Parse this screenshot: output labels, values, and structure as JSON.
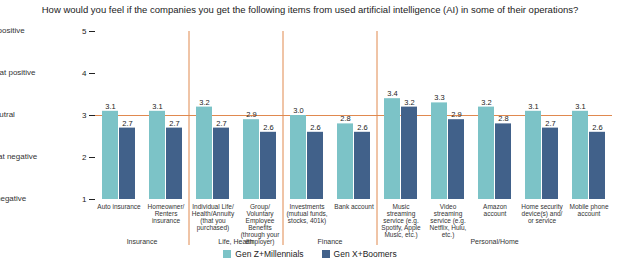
{
  "chart_data": {
    "type": "bar",
    "title": "How would you feel if the companies you get the following items from used artificial intelligence (AI) in some of their operations?",
    "categories": [
      "Auto insurance",
      "Homeowner/Renters insurance",
      "Individual Life/Health/Annuity (that you purchased)",
      "Group/Voluntary Employee Benefits (through your employer)",
      "Investments (mutual funds, stocks, 401k)",
      "Bank account",
      "Music streaming service (e.g. Spotify, Apple Music, etc.)",
      "Video streaming service (e.g. Netflix, Hulu, etc.)",
      "Amazon account",
      "Home security device(s) and/or service",
      "Mobile phone account"
    ],
    "groups": [
      {
        "name": "Insurance",
        "categories": [
          "Auto insurance",
          "Homeowner/Renters insurance"
        ]
      },
      {
        "name": "Life, Health",
        "categories": [
          "Individual Life/Health/Annuity (that you purchased)",
          "Group/Voluntary Employee Benefits (through your employer)"
        ]
      },
      {
        "name": "Finance",
        "categories": [
          "Investments (mutual funds, stocks, 401k)",
          "Bank account"
        ]
      },
      {
        "name": "Personal/Home",
        "categories": [
          "Music streaming service (e.g. Spotify, Apple Music, etc.)",
          "Video streaming service (e.g. Netflix, Hulu, etc.)",
          "Amazon account",
          "Home security device(s) and/or service",
          "Mobile phone account"
        ]
      }
    ],
    "series": [
      {
        "name": "Gen Z+Millennials",
        "color": "#7cc3c7",
        "values": [
          3.1,
          3.1,
          3.2,
          2.9,
          3.0,
          2.8,
          3.4,
          3.3,
          3.2,
          3.1,
          3.1
        ],
        "value_labels": [
          "3.1",
          "3.1",
          "3.2",
          "2.9",
          "3.0",
          "2.8",
          "3.4",
          "3.3",
          "3.2",
          "3.1",
          "3.1"
        ]
      },
      {
        "name": "Gen X+Boomers",
        "color": "#41618a",
        "values": [
          2.7,
          2.7,
          2.7,
          2.6,
          2.6,
          2.6,
          3.2,
          2.9,
          2.8,
          2.7,
          2.6
        ],
        "value_labels": [
          "2.7",
          "2.7",
          "2.7",
          "2.6",
          "2.6",
          "2.6",
          "3.2",
          "2.9",
          "2.8",
          "2.7",
          "2.6"
        ]
      }
    ],
    "ylim": [
      1,
      5
    ],
    "yticks": [
      1,
      2,
      3,
      4,
      5
    ],
    "ytick_descriptions": [
      "Very negative",
      "Somewhat negative",
      "Neutral",
      "Somewhat positive",
      "Very positive"
    ],
    "reference_line": 3,
    "data_labels": true,
    "legend": "bottom"
  }
}
